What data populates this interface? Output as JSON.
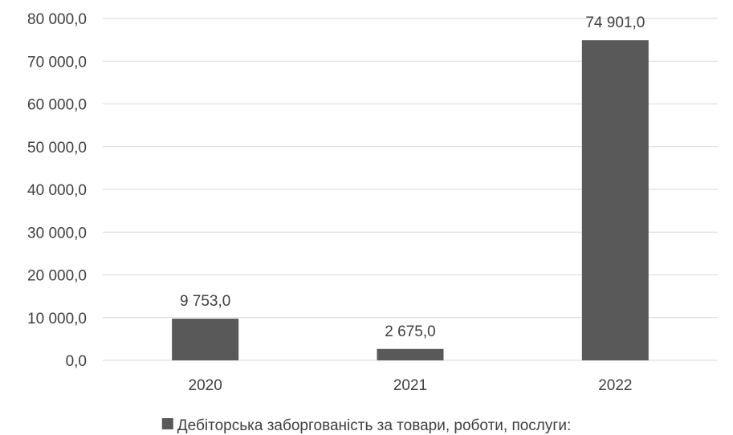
{
  "chart_data": {
    "type": "bar",
    "categories": [
      "2020",
      "2021",
      "2022"
    ],
    "series": [
      {
        "name": "Дебіторська заборгованість за товари, роботи, послуги:",
        "values": [
          9753.0,
          2675.0,
          74901.0
        ],
        "value_labels": [
          "9 753,0",
          "2 675,0",
          "74 901,0"
        ]
      }
    ],
    "ylim": [
      0,
      80000
    ],
    "yticks": [
      0,
      10000,
      20000,
      30000,
      40000,
      50000,
      60000,
      70000,
      80000
    ],
    "ytick_labels": [
      "0,0",
      "10 000,0",
      "20 000,0",
      "30 000,0",
      "40 000,0",
      "50 000,0",
      "60 000,0",
      "70 000,0",
      "80 000,0"
    ],
    "grid": true,
    "legend_position": "bottom",
    "colors": {
      "bar": "#595959",
      "grid": "#d9d9d9",
      "text": "#404040"
    }
  }
}
